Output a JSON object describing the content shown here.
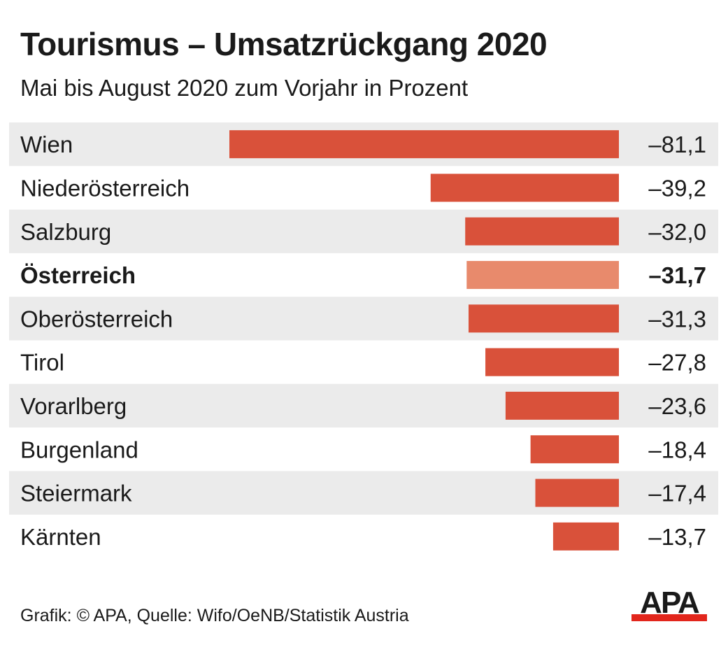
{
  "title": "Tourismus – Umsatzrückgang 2020",
  "subtitle": "Mai bis August 2020 zum Vorjahr in Prozent",
  "footer": "Grafik: © APA, Quelle: Wifo/OeNB/Statistik Austria",
  "logo_text": "APA",
  "colors": {
    "bar": "#d9513a",
    "bar_highlight": "#e88a6c",
    "row_shade": "#ebebeb",
    "logo_underline": "#e2261c"
  },
  "chart_data": {
    "type": "bar",
    "orientation": "horizontal",
    "categories": [
      "Wien",
      "Niederösterreich",
      "Salzburg",
      "Österreich",
      "Oberösterreich",
      "Tirol",
      "Vorarlberg",
      "Burgenland",
      "Steiermark",
      "Kärnten"
    ],
    "values": [
      -81.1,
      -39.2,
      -32.0,
      -31.7,
      -31.3,
      -27.8,
      -23.6,
      -18.4,
      -17.4,
      -13.7
    ],
    "value_labels": [
      "–81,1",
      "–39,2",
      "–32,0",
      "–31,7",
      "–31,3",
      "–27,8",
      "–23,6",
      "–18,4",
      "–17,4",
      "–13,7"
    ],
    "highlight": "Österreich",
    "xlim": [
      -81.1,
      0
    ]
  }
}
